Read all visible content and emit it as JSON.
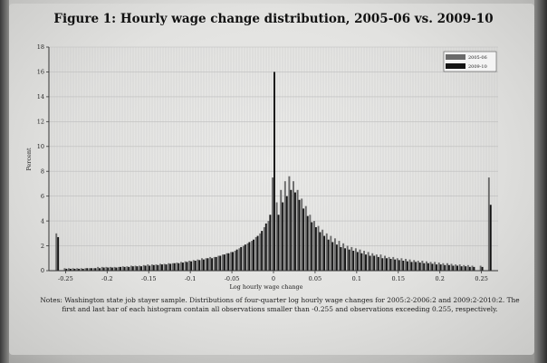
{
  "figure": {
    "title": "Figure 1: Hourly wage change distribution, 2005-06 vs. 2009-10",
    "notes": "Notes: Washington state job stayer sample. Distributions of four-quarter log hourly wage changes for 2005:2-2006:2 and 2009:2-2010:2. The first and last bar of each histogram contain all observations smaller than -0.255 and observations exceeding 0.255, respectively."
  },
  "colors": {
    "series_2005": "#6a6a6a",
    "series_2009": "#141414",
    "grid": "#c8c8c8"
  },
  "chart_data": {
    "type": "bar",
    "title": "Figure 1: Hourly wage change distribution, 2005-06 vs. 2009-10",
    "xlabel": "Log hourly wage change",
    "ylabel": "Percent",
    "xlim": [
      -0.27,
      0.27
    ],
    "ylim": [
      0,
      18
    ],
    "xticks": [
      -0.25,
      -0.2,
      -0.15,
      -0.1,
      -0.05,
      0,
      0.05,
      0.1,
      0.15,
      0.2,
      0.25
    ],
    "xtick_labels": [
      "-0.25",
      "-0.2",
      "-0.15",
      "-0.1",
      "-0.05",
      "0",
      "0.05",
      "0.1",
      "0.15",
      "0.2",
      "0.25"
    ],
    "yticks": [
      0,
      2,
      4,
      6,
      8,
      10,
      12,
      14,
      16,
      18
    ],
    "ytick_labels": [
      "0",
      "2",
      "4",
      "6",
      "8",
      "10",
      "12",
      "14",
      "16",
      "18"
    ],
    "grid": true,
    "legend_position": "top-right",
    "bin_width": 0.005,
    "x": [
      -0.26,
      -0.25,
      -0.245,
      -0.24,
      -0.235,
      -0.23,
      -0.225,
      -0.22,
      -0.215,
      -0.21,
      -0.205,
      -0.2,
      -0.195,
      -0.19,
      -0.185,
      -0.18,
      -0.175,
      -0.17,
      -0.165,
      -0.16,
      -0.155,
      -0.15,
      -0.145,
      -0.14,
      -0.135,
      -0.13,
      -0.125,
      -0.12,
      -0.115,
      -0.11,
      -0.105,
      -0.1,
      -0.095,
      -0.09,
      -0.085,
      -0.08,
      -0.075,
      -0.07,
      -0.065,
      -0.06,
      -0.055,
      -0.05,
      -0.045,
      -0.04,
      -0.035,
      -0.03,
      -0.025,
      -0.02,
      -0.015,
      -0.01,
      -0.005,
      0,
      0.005,
      0.01,
      0.015,
      0.02,
      0.025,
      0.03,
      0.035,
      0.04,
      0.045,
      0.05,
      0.055,
      0.06,
      0.065,
      0.07,
      0.075,
      0.08,
      0.085,
      0.09,
      0.095,
      0.1,
      0.105,
      0.11,
      0.115,
      0.12,
      0.125,
      0.13,
      0.135,
      0.14,
      0.145,
      0.15,
      0.155,
      0.16,
      0.165,
      0.17,
      0.175,
      0.18,
      0.185,
      0.19,
      0.195,
      0.2,
      0.205,
      0.21,
      0.215,
      0.22,
      0.225,
      0.23,
      0.235,
      0.24,
      0.25,
      0.26
    ],
    "series": [
      {
        "name": "2005-06",
        "values": [
          3.0,
          0.2,
          0.2,
          0.2,
          0.2,
          0.2,
          0.2,
          0.2,
          0.2,
          0.3,
          0.3,
          0.3,
          0.3,
          0.3,
          0.3,
          0.35,
          0.35,
          0.4,
          0.4,
          0.4,
          0.45,
          0.5,
          0.5,
          0.5,
          0.55,
          0.55,
          0.6,
          0.6,
          0.65,
          0.7,
          0.75,
          0.8,
          0.85,
          0.9,
          1.0,
          1.0,
          1.1,
          1.1,
          1.2,
          1.3,
          1.4,
          1.5,
          1.6,
          1.8,
          2.0,
          2.2,
          2.4,
          2.7,
          3.0,
          3.5,
          4.0,
          7.5,
          5.5,
          6.5,
          7.2,
          7.6,
          7.2,
          6.5,
          5.8,
          5.2,
          4.5,
          4.0,
          3.6,
          3.3,
          3.0,
          2.8,
          2.6,
          2.4,
          2.2,
          2.0,
          1.9,
          1.8,
          1.7,
          1.6,
          1.5,
          1.4,
          1.3,
          1.3,
          1.2,
          1.1,
          1.1,
          1.0,
          1.0,
          0.95,
          0.9,
          0.85,
          0.8,
          0.8,
          0.75,
          0.7,
          0.7,
          0.65,
          0.6,
          0.6,
          0.55,
          0.5,
          0.5,
          0.45,
          0.45,
          0.4,
          0.4,
          7.5
        ]
      },
      {
        "name": "2009-10",
        "values": [
          2.7,
          0.15,
          0.15,
          0.15,
          0.15,
          0.15,
          0.2,
          0.2,
          0.2,
          0.2,
          0.25,
          0.25,
          0.25,
          0.25,
          0.3,
          0.3,
          0.3,
          0.35,
          0.35,
          0.35,
          0.4,
          0.4,
          0.45,
          0.45,
          0.5,
          0.5,
          0.55,
          0.6,
          0.6,
          0.65,
          0.7,
          0.75,
          0.8,
          0.85,
          0.9,
          1.0,
          1.0,
          1.1,
          1.2,
          1.3,
          1.4,
          1.5,
          1.7,
          1.9,
          2.1,
          2.3,
          2.5,
          2.8,
          3.2,
          3.8,
          4.5,
          16.0,
          4.5,
          5.5,
          6.0,
          6.5,
          6.3,
          5.7,
          5.0,
          4.4,
          3.9,
          3.5,
          3.1,
          2.8,
          2.5,
          2.3,
          2.1,
          1.9,
          1.8,
          1.7,
          1.6,
          1.5,
          1.4,
          1.3,
          1.2,
          1.2,
          1.1,
          1.0,
          1.0,
          0.95,
          0.9,
          0.85,
          0.8,
          0.75,
          0.7,
          0.7,
          0.65,
          0.6,
          0.6,
          0.55,
          0.5,
          0.5,
          0.45,
          0.45,
          0.4,
          0.4,
          0.35,
          0.35,
          0.3,
          0.3,
          0.3,
          5.3
        ]
      }
    ]
  }
}
